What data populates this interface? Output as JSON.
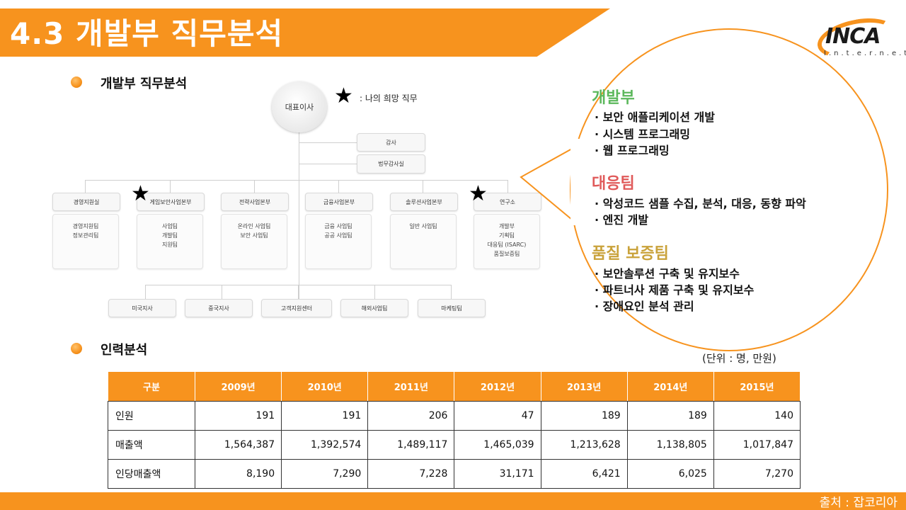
{
  "title": "4.3 개발부 직무분석",
  "logo": {
    "word": "INCA",
    "sub": "I.n.t.e.r.n.e.t"
  },
  "section1": {
    "heading": "개발부 직무분석"
  },
  "section2": {
    "heading": "인력분석"
  },
  "org": {
    "ceo": "대표이사",
    "legend": ": 나의 희망 직무",
    "audit": "감사",
    "legal_audit": "법무감사실",
    "divisions": [
      {
        "name": "경영지원실",
        "subs": [
          "경영지원팀",
          "정보관리팀"
        ]
      },
      {
        "name": "게임보안사업본부",
        "subs": [
          "사업팀",
          "개발팀",
          "지원팀"
        ]
      },
      {
        "name": "전략사업본부",
        "subs": [
          "온라인 사업팀",
          "보안 사업팀"
        ]
      },
      {
        "name": "금융사업본부",
        "subs": [
          "금융 사업팀",
          "공공 사업팀"
        ]
      },
      {
        "name": "솔루션사업본부",
        "subs": [
          "일반 사업팀"
        ]
      },
      {
        "name": "연구소",
        "subs": [
          "개발부",
          "기획팀",
          "대응팀 (ISARC)",
          "품질보증팀"
        ]
      }
    ],
    "branches": [
      "미국지사",
      "중국지사",
      "고객지원센터",
      "해외사업팀",
      "마케팅팀"
    ]
  },
  "callout": {
    "depts": [
      {
        "name": "개발부",
        "color": "#5cb85c",
        "items": [
          "· 보안 애플리케이션 개발",
          "· 시스템 프로그래밍",
          "· 웹 프로그래밍"
        ]
      },
      {
        "name": "대응팀",
        "color": "#e05a5a",
        "items": [
          "· 악성코드 샘플 수집, 분석, 대응, 동향 파악",
          "· 엔진 개발"
        ]
      },
      {
        "name": "품질 보증팀",
        "color": "#c9a23a",
        "items": [
          "· 보안솔루션 구축 및 유지보수",
          "· 파트너사 제품 구축 및 유지보수",
          "· 장애요인 분석 관리"
        ]
      }
    ]
  },
  "table": {
    "unit": "(단위 : 명, 만원)",
    "headers": [
      "구분",
      "2009년",
      "2010년",
      "2011년",
      "2012년",
      "2013년",
      "2014년",
      "2015년"
    ],
    "rows": [
      [
        "인원",
        "191",
        "191",
        "206",
        "47",
        "189",
        "189",
        "140"
      ],
      [
        "매출액",
        "1,564,387",
        "1,392,574",
        "1,489,117",
        "1,465,039",
        "1,213,628",
        "1,138,805",
        "1,017,847"
      ],
      [
        "인당매출액",
        "8,190",
        "7,290",
        "7,228",
        "31,171",
        "6,421",
        "6,025",
        "7,270"
      ]
    ]
  },
  "source": "출처 : 잡코리아",
  "colors": {
    "accent": "#f7931e"
  }
}
